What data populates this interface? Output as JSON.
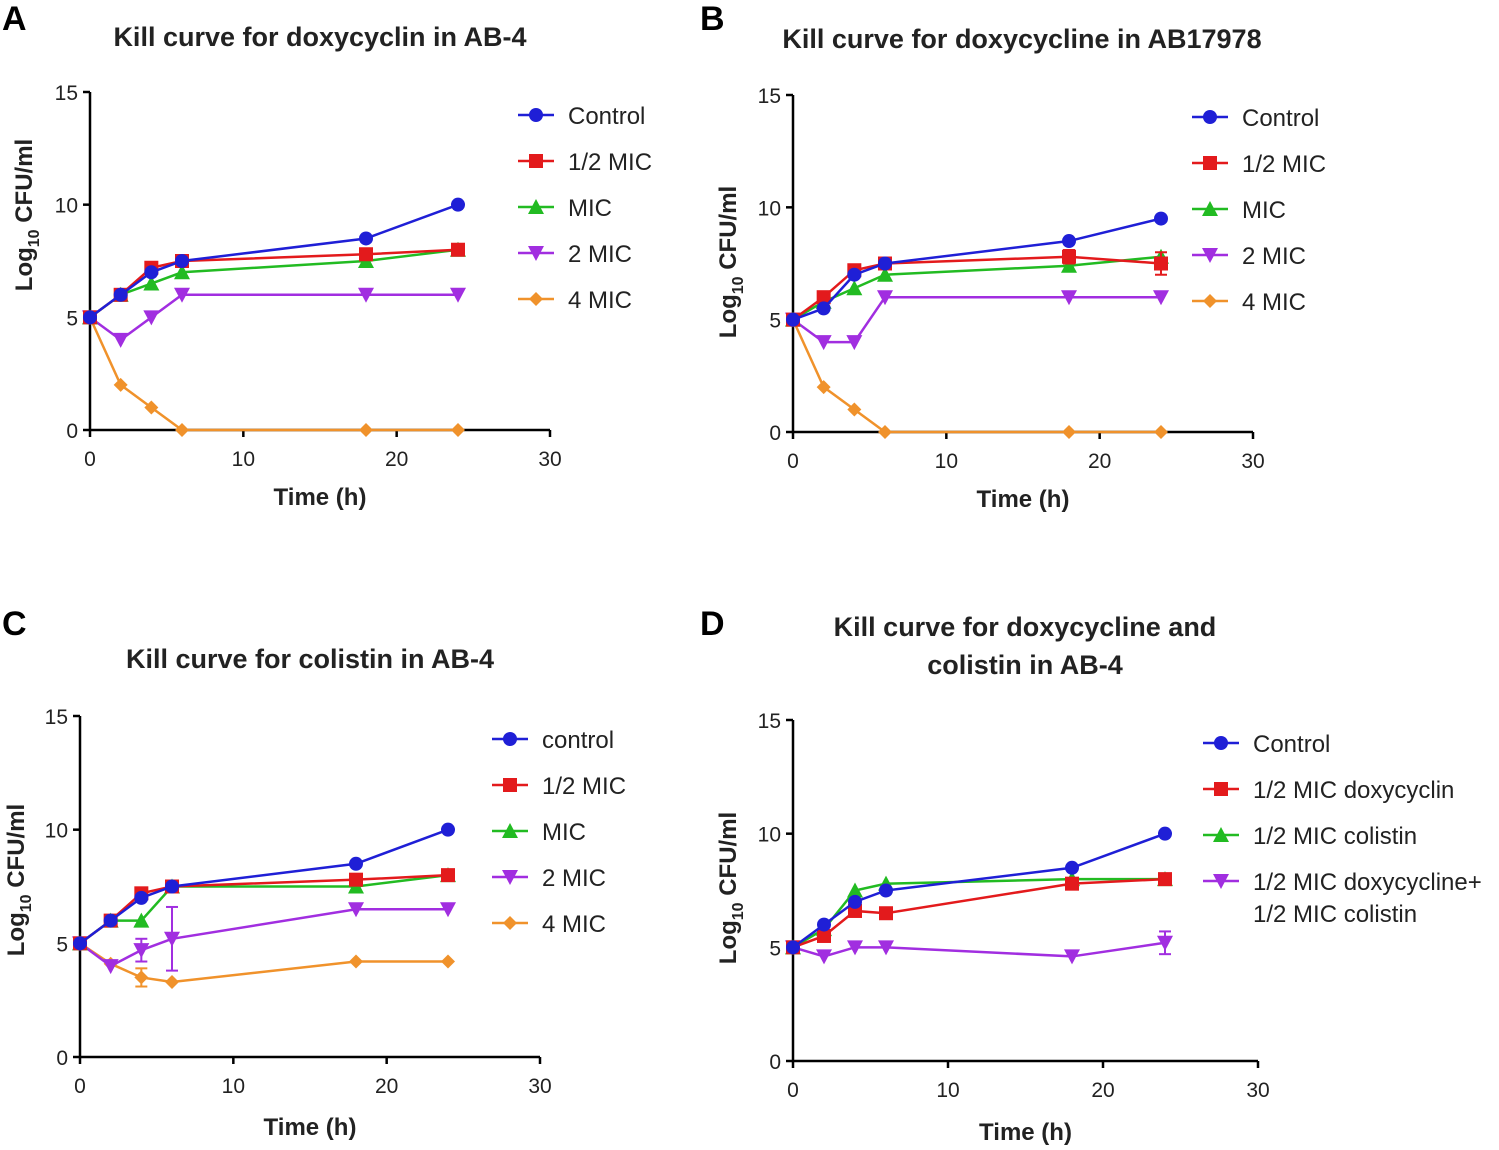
{
  "chart_data": [
    {
      "panel": "A",
      "type": "line",
      "title": "Kill curve for doxycyclin in AB-4",
      "title_lines": [
        "Kill curve for doxycyclin in AB-4"
      ],
      "xlabel": "Time (h)",
      "ylabel": "Log10 CFU/ml",
      "ylabel_parts": {
        "pre": "Log",
        "sub": "10",
        "post": " CFU/ml"
      },
      "xlim": [
        0,
        30
      ],
      "ylim": [
        0,
        15
      ],
      "xticks": [
        0,
        10,
        20,
        30
      ],
      "yticks": [
        0,
        5,
        10,
        15
      ],
      "x": [
        0,
        2,
        4,
        6,
        18,
        24
      ],
      "series": [
        {
          "name": "Control",
          "color": "#1f1fd6",
          "marker": "circle",
          "values": [
            5,
            6,
            7,
            7.5,
            8.5,
            10
          ]
        },
        {
          "name": "1/2 MIC",
          "color": "#e31a1c",
          "marker": "square",
          "values": [
            5,
            6,
            7.2,
            7.5,
            7.8,
            8
          ]
        },
        {
          "name": "MIC",
          "color": "#22bb22",
          "marker": "triangle-up",
          "values": [
            5,
            6,
            6.5,
            7,
            7.5,
            8
          ]
        },
        {
          "name": "2 MIC",
          "color": "#a12ee0",
          "marker": "triangle-down",
          "values": [
            5,
            4,
            5,
            6,
            6,
            6
          ]
        },
        {
          "name": "4 MIC",
          "color": "#f0922b",
          "marker": "diamond",
          "values": [
            5,
            2,
            1,
            0,
            0,
            0
          ]
        }
      ]
    },
    {
      "panel": "B",
      "type": "line",
      "title": "Kill curve for  doxycycline in AB17978",
      "title_lines": [
        "Kill curve for  doxycycline in AB17978"
      ],
      "xlabel": "Time (h)",
      "ylabel": "Log10 CFU/ml",
      "ylabel_parts": {
        "pre": "Log",
        "sub": "10",
        "post": " CFU/ml"
      },
      "xlim": [
        0,
        30
      ],
      "ylim": [
        0,
        15
      ],
      "xticks": [
        0,
        10,
        20,
        30
      ],
      "yticks": [
        0,
        5,
        10,
        15
      ],
      "x": [
        0,
        2,
        4,
        6,
        18,
        24
      ],
      "series": [
        {
          "name": "Control",
          "color": "#1f1fd6",
          "marker": "circle",
          "values": [
            5,
            5.5,
            7,
            7.5,
            8.5,
            9.5
          ]
        },
        {
          "name": "1/2 MIC",
          "color": "#e31a1c",
          "marker": "square",
          "values": [
            5,
            6,
            7.2,
            7.5,
            7.8,
            7.5
          ],
          "errors": [
            0,
            0,
            0,
            0,
            0.3,
            0.5
          ]
        },
        {
          "name": "MIC",
          "color": "#22bb22",
          "marker": "triangle-up",
          "values": [
            5,
            5.8,
            6.4,
            7,
            7.4,
            7.8
          ]
        },
        {
          "name": "2 MIC",
          "color": "#a12ee0",
          "marker": "triangle-down",
          "values": [
            5,
            4,
            4,
            6,
            6,
            6
          ]
        },
        {
          "name": "4 MIC",
          "color": "#f0922b",
          "marker": "diamond",
          "values": [
            5,
            2,
            1,
            0,
            0,
            0
          ]
        }
      ]
    },
    {
      "panel": "C",
      "type": "line",
      "title": "Kill curve for colistin in AB-4",
      "title_lines": [
        "Kill curve for colistin in AB-4"
      ],
      "xlabel": "Time (h)",
      "ylabel": "Log10 CFU/ml",
      "ylabel_parts": {
        "pre": "Log",
        "sub": "10",
        "post": " CFU/ml"
      },
      "xlim": [
        0,
        30
      ],
      "ylim": [
        0,
        15
      ],
      "xticks": [
        0,
        10,
        20,
        30
      ],
      "yticks": [
        0,
        5,
        10,
        15
      ],
      "x": [
        0,
        2,
        4,
        6,
        18,
        24
      ],
      "series": [
        {
          "name": "control",
          "color": "#1f1fd6",
          "marker": "circle",
          "values": [
            5,
            6,
            7,
            7.5,
            8.5,
            10
          ]
        },
        {
          "name": "1/2 MIC",
          "color": "#e31a1c",
          "marker": "square",
          "values": [
            5,
            6,
            7.2,
            7.5,
            7.8,
            8
          ]
        },
        {
          "name": "MIC",
          "color": "#22bb22",
          "marker": "triangle-up",
          "values": [
            5,
            6,
            6,
            7.5,
            7.5,
            8
          ]
        },
        {
          "name": "2 MIC",
          "color": "#a12ee0",
          "marker": "triangle-down",
          "values": [
            5,
            4,
            4.7,
            5.2,
            6.5,
            6.5
          ],
          "errors": [
            0,
            0,
            0.5,
            1.4,
            0,
            0
          ]
        },
        {
          "name": "4 MIC",
          "color": "#f0922b",
          "marker": "diamond",
          "values": [
            5,
            4.1,
            3.5,
            3.3,
            4.2,
            4.2
          ],
          "errors": [
            0,
            0,
            0.4,
            0,
            0,
            0
          ]
        }
      ]
    },
    {
      "panel": "D",
      "type": "line",
      "title": "Kill curve for doxycycline and colistin in AB-4",
      "title_lines": [
        "Kill curve for doxycycline and",
        "colistin in AB-4"
      ],
      "xlabel": "Time (h)",
      "ylabel": "Log10 CFU/ml",
      "ylabel_parts": {
        "pre": "Log",
        "sub": "10",
        "post": " CFU/ml"
      },
      "xlim": [
        0,
        30
      ],
      "ylim": [
        0,
        15
      ],
      "xticks": [
        0,
        10,
        20,
        30
      ],
      "yticks": [
        0,
        5,
        10,
        15
      ],
      "x": [
        0,
        2,
        4,
        6,
        18,
        24
      ],
      "series": [
        {
          "name": "Control",
          "color": "#1f1fd6",
          "marker": "circle",
          "values": [
            5,
            6,
            7,
            7.5,
            8.5,
            10
          ]
        },
        {
          "name": "1/2 MIC doxycyclin",
          "color": "#e31a1c",
          "marker": "square",
          "values": [
            5,
            5.5,
            6.6,
            6.5,
            7.8,
            8
          ]
        },
        {
          "name": "1/2 MIC colistin",
          "color": "#22bb22",
          "marker": "triangle-up",
          "values": [
            5,
            5.8,
            7.5,
            7.8,
            8,
            8
          ]
        },
        {
          "name": "1/2 MIC doxycycline+ 1/2 MIC colistin",
          "label_lines": [
            "1/2 MIC doxycycline+",
            "1/2 MIC colistin"
          ],
          "color": "#a12ee0",
          "marker": "triangle-down",
          "values": [
            5,
            4.6,
            5,
            5,
            4.6,
            5.2
          ],
          "errors": [
            0,
            0,
            0,
            0,
            0,
            0.5
          ]
        }
      ]
    }
  ]
}
